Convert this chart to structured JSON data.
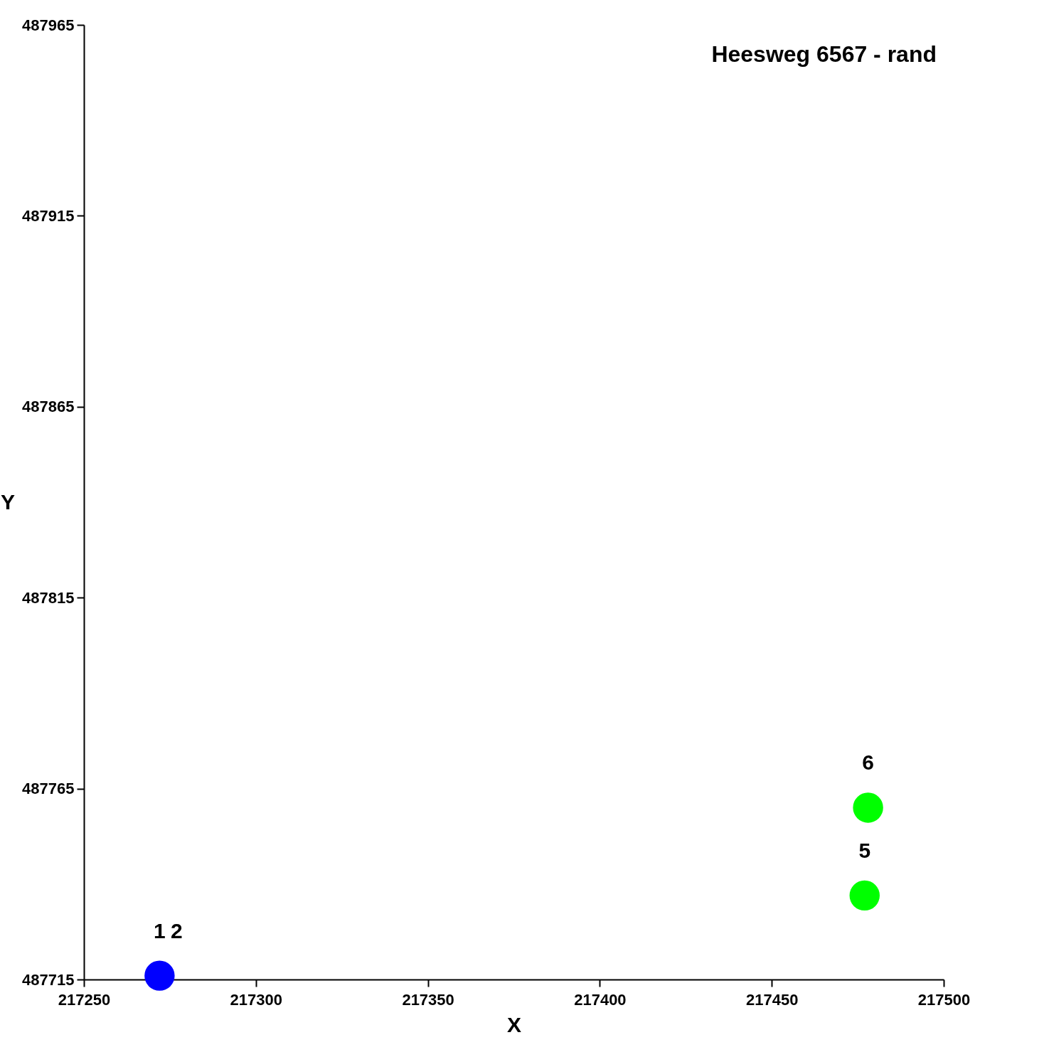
{
  "chart_data": {
    "type": "scatter",
    "title": "Heesweg 6567 - rand",
    "xlabel": "X",
    "ylabel": "Y",
    "xlim": [
      217250,
      217500
    ],
    "xticks": [
      217250,
      217300,
      217350,
      217400,
      217450,
      217500
    ],
    "ylim": [
      487715,
      487965
    ],
    "yticks": [
      487715,
      487765,
      487815,
      487865,
      487915,
      487965
    ],
    "grid": false,
    "marker": "circle",
    "series": [
      {
        "color": "#0000ff",
        "x": [
          217272
        ],
        "values": [
          487716
        ]
      },
      {
        "color": "#00ff00",
        "x": [
          217477,
          217478
        ],
        "values": [
          487737,
          487760
        ]
      }
    ],
    "annotations": [
      {
        "text": "1",
        "x": 217272,
        "y": 487716
      },
      {
        "text": "2",
        "x": 217272,
        "y": 487716
      },
      {
        "text": "5",
        "x": 217477,
        "y": 487737
      },
      {
        "text": "6",
        "x": 217478,
        "y": 487760
      }
    ]
  }
}
